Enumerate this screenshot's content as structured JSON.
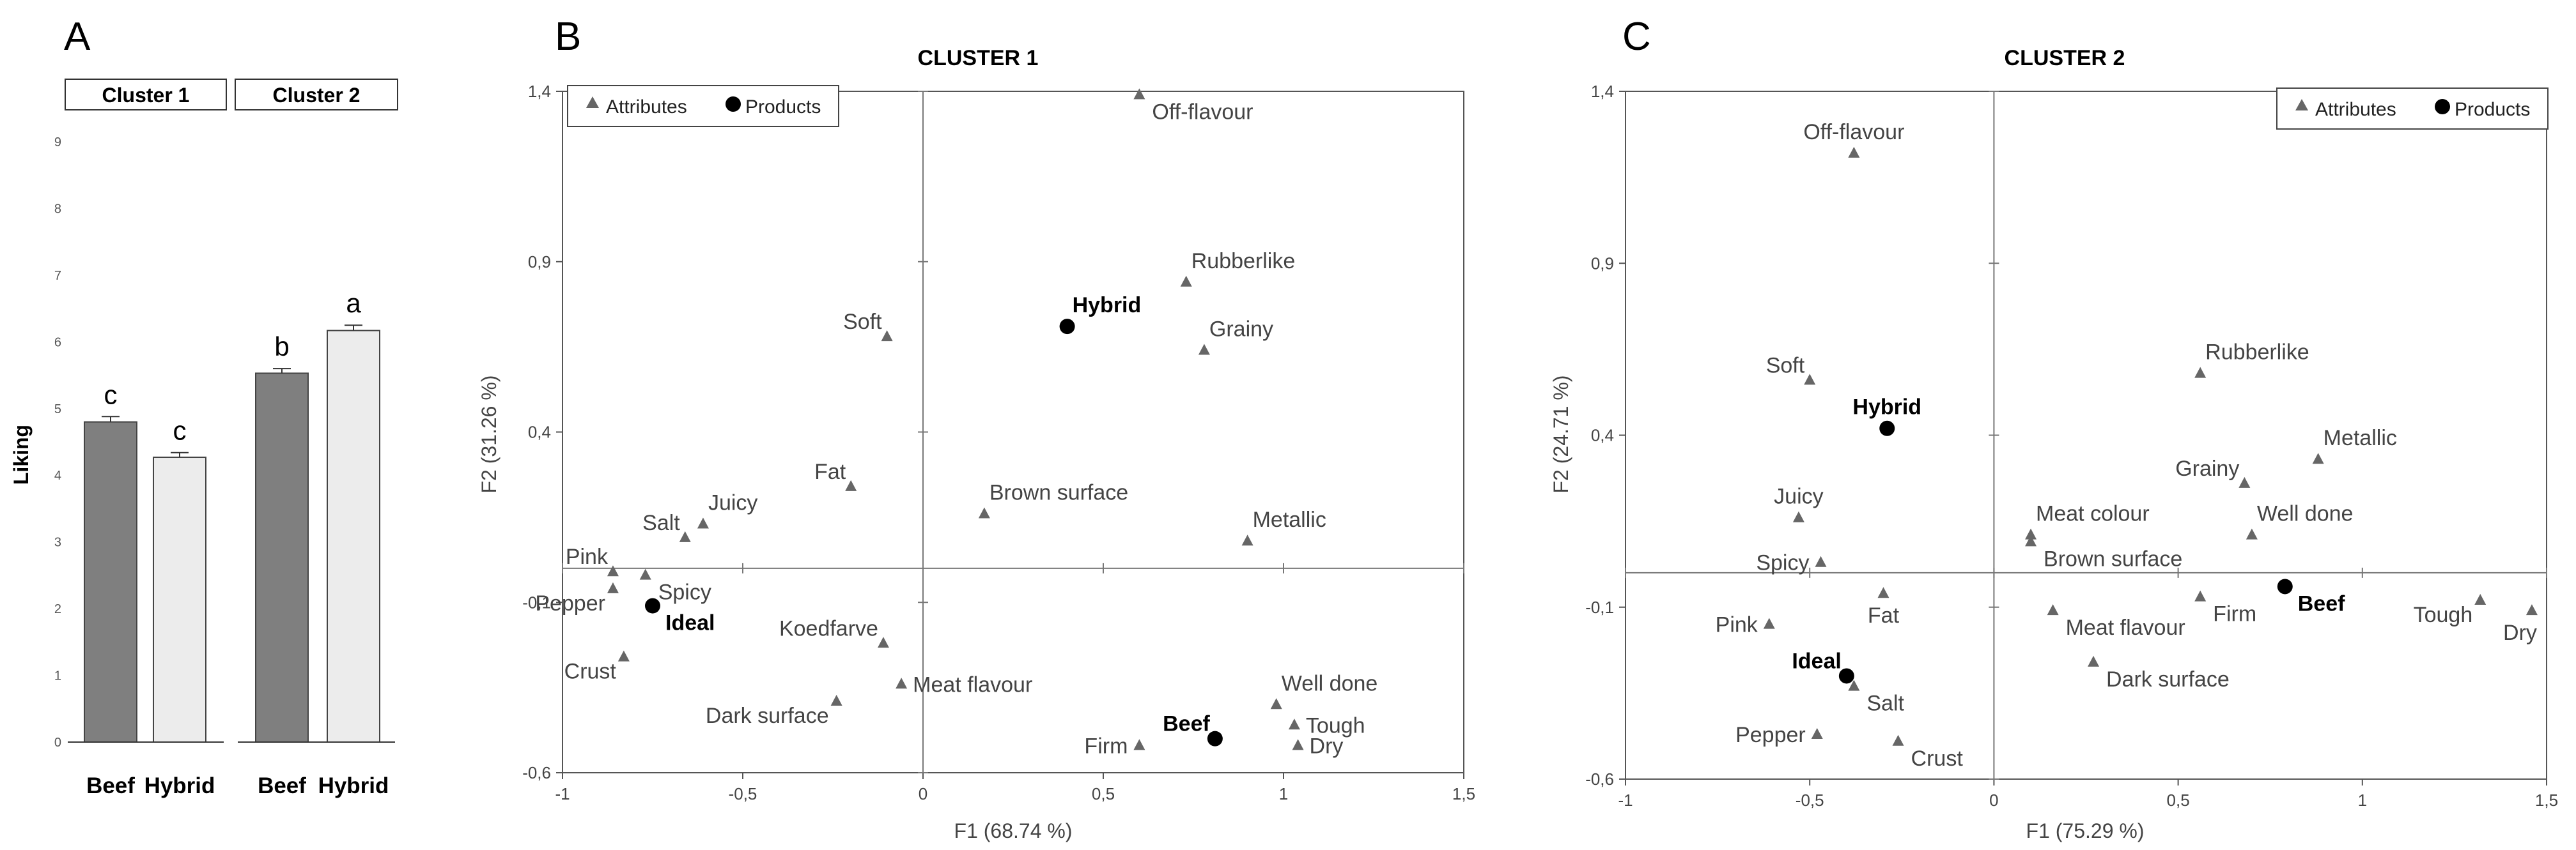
{
  "chart_data": [
    {
      "panel": "A",
      "type": "bar",
      "ylabel": "Liking",
      "ylim": [
        0,
        9
      ],
      "yticks": [
        0,
        1,
        2,
        3,
        4,
        5,
        6,
        7,
        8,
        9
      ],
      "groups": [
        {
          "name": "Cluster 1",
          "bars": [
            {
              "category": "Beef",
              "value": 4.8,
              "error": 0.08,
              "letter": "c",
              "color": "#7f7f7f"
            },
            {
              "category": "Hybrid",
              "value": 4.27,
              "error": 0.07,
              "letter": "c",
              "color": "#ececec"
            }
          ]
        },
        {
          "name": "Cluster 2",
          "bars": [
            {
              "category": "Beef",
              "value": 5.53,
              "error": 0.07,
              "letter": "b",
              "color": "#7f7f7f"
            },
            {
              "category": "Hybrid",
              "value": 6.17,
              "error": 0.08,
              "letter": "a",
              "color": "#ececec"
            }
          ]
        }
      ]
    },
    {
      "panel": "B",
      "type": "scatter",
      "title": "CLUSTER 1",
      "xlabel": "F1 (68.74 %)",
      "ylabel": "F2 (31.26 %)",
      "xlim": [
        -1,
        1.5
      ],
      "ylim": [
        -0.6,
        1.4
      ],
      "xticks": [
        -1,
        -0.5,
        0,
        0.5,
        1,
        1.5
      ],
      "xtick_labels": [
        "-1",
        "-0,5",
        "0",
        "0,5",
        "1",
        "1,5"
      ],
      "yticks": [
        -0.6,
        -0.1,
        0.4,
        0.9,
        1.4
      ],
      "ytick_labels": [
        "-0,6",
        "-0,1",
        "0,4",
        "0,9",
        "1,4"
      ],
      "legend": {
        "attributes": "Attributes",
        "products": "Products",
        "position": "top-left"
      },
      "attributes": [
        {
          "label": "Off-flavour",
          "x": 0.6,
          "y": 1.39,
          "pos": "right-below"
        },
        {
          "label": "Rubberlike",
          "x": 0.73,
          "y": 0.84,
          "pos": "above-right"
        },
        {
          "label": "Grainy",
          "x": 0.78,
          "y": 0.64,
          "pos": "above-right"
        },
        {
          "label": "Soft",
          "x": -0.1,
          "y": 0.68,
          "pos": "above-left"
        },
        {
          "label": "Fat",
          "x": -0.2,
          "y": 0.24,
          "pos": "above-left"
        },
        {
          "label": "Brown surface",
          "x": 0.17,
          "y": 0.16,
          "pos": "above-right"
        },
        {
          "label": "Metallic",
          "x": 0.9,
          "y": 0.08,
          "pos": "above-right"
        },
        {
          "label": "Juicy",
          "x": -0.61,
          "y": 0.13,
          "pos": "above-right"
        },
        {
          "label": "Salt",
          "x": -0.66,
          "y": 0.09,
          "pos": "above-left"
        },
        {
          "label": "Pink",
          "x": -0.86,
          "y": -0.01,
          "pos": "above-left"
        },
        {
          "label": "Spicy",
          "x": -0.77,
          "y": -0.02,
          "pos": "right-below"
        },
        {
          "label": "Pepper",
          "x": -0.86,
          "y": -0.06,
          "pos": "left-below"
        },
        {
          "label": "Crust",
          "x": -0.83,
          "y": -0.26,
          "pos": "left-below"
        },
        {
          "label": "Koedfarve",
          "x": -0.11,
          "y": -0.22,
          "pos": "above-left"
        },
        {
          "label": "Meat flavour",
          "x": -0.06,
          "y": -0.34,
          "pos": "right"
        },
        {
          "label": "Dark surface",
          "x": -0.24,
          "y": -0.39,
          "pos": "left-below"
        },
        {
          "label": "Well done",
          "x": 0.98,
          "y": -0.4,
          "pos": "above-right"
        },
        {
          "label": "Tough",
          "x": 1.03,
          "y": -0.46,
          "pos": "right"
        },
        {
          "label": "Dry",
          "x": 1.04,
          "y": -0.52,
          "pos": "right"
        },
        {
          "label": "Firm",
          "x": 0.6,
          "y": -0.52,
          "pos": "left"
        }
      ],
      "products": [
        {
          "label": "Hybrid",
          "x": 0.4,
          "y": 0.71,
          "pos": "above-right"
        },
        {
          "label": "Ideal",
          "x": -0.75,
          "y": -0.11,
          "pos": "right-below"
        },
        {
          "label": "Beef",
          "x": 0.81,
          "y": -0.5,
          "pos": "above-left"
        }
      ]
    },
    {
      "panel": "C",
      "type": "scatter",
      "title": "CLUSTER 2",
      "xlabel": "F1 (75.29 %)",
      "ylabel": "F2 (24.71 %)",
      "xlim": [
        -1,
        1.5
      ],
      "ylim": [
        -0.6,
        1.4
      ],
      "xticks": [
        -1,
        -0.5,
        0,
        0.5,
        1,
        1.5
      ],
      "xtick_labels": [
        "-1",
        "-0,5",
        "0",
        "0,5",
        "1",
        "1,5"
      ],
      "yticks": [
        -0.6,
        -0.1,
        0.4,
        0.9,
        1.4
      ],
      "ytick_labels": [
        "-0,6",
        "-0,1",
        "0,4",
        "0,9",
        "1,4"
      ],
      "legend": {
        "attributes": "Attributes",
        "products": "Products",
        "position": "top-right"
      },
      "attributes": [
        {
          "label": "Off-flavour",
          "x": -0.38,
          "y": 1.22,
          "pos": "above"
        },
        {
          "label": "Soft",
          "x": -0.5,
          "y": 0.56,
          "pos": "above-left"
        },
        {
          "label": "Rubberlike",
          "x": 0.56,
          "y": 0.58,
          "pos": "above-right"
        },
        {
          "label": "Metallic",
          "x": 0.88,
          "y": 0.33,
          "pos": "above-right"
        },
        {
          "label": "Grainy",
          "x": 0.68,
          "y": 0.26,
          "pos": "above-left"
        },
        {
          "label": "Juicy",
          "x": -0.53,
          "y": 0.16,
          "pos": "above"
        },
        {
          "label": "Meat colour",
          "x": 0.1,
          "y": 0.11,
          "pos": "above-right"
        },
        {
          "label": "Brown surface",
          "x": 0.1,
          "y": 0.09,
          "pos": "right-below"
        },
        {
          "label": "Well done",
          "x": 0.7,
          "y": 0.11,
          "pos": "above-right"
        },
        {
          "label": "Spicy",
          "x": -0.47,
          "y": 0.03,
          "pos": "left"
        },
        {
          "label": "Fat",
          "x": -0.3,
          "y": -0.06,
          "pos": "below"
        },
        {
          "label": "Pink",
          "x": -0.61,
          "y": -0.15,
          "pos": "left"
        },
        {
          "label": "Meat flavour",
          "x": 0.16,
          "y": -0.11,
          "pos": "right-below"
        },
        {
          "label": "Firm",
          "x": 0.56,
          "y": -0.07,
          "pos": "right-below"
        },
        {
          "label": "Tough",
          "x": 1.32,
          "y": -0.08,
          "pos": "left-below"
        },
        {
          "label": "Dry",
          "x": 1.46,
          "y": -0.11,
          "pos": "below-left"
        },
        {
          "label": "Dark surface",
          "x": 0.27,
          "y": -0.26,
          "pos": "right-below"
        },
        {
          "label": "Salt",
          "x": -0.38,
          "y": -0.33,
          "pos": "right-below"
        },
        {
          "label": "Pepper",
          "x": -0.48,
          "y": -0.47,
          "pos": "left"
        },
        {
          "label": "Crust",
          "x": -0.26,
          "y": -0.49,
          "pos": "right-below"
        }
      ],
      "products": [
        {
          "label": "Hybrid",
          "x": -0.29,
          "y": 0.42,
          "pos": "above"
        },
        {
          "label": "Beef",
          "x": 0.79,
          "y": -0.04,
          "pos": "right-below"
        },
        {
          "label": "Ideal",
          "x": -0.4,
          "y": -0.3,
          "pos": "above-left"
        }
      ]
    }
  ],
  "panel_letters": {
    "a": "A",
    "b": "B",
    "c": "C"
  }
}
